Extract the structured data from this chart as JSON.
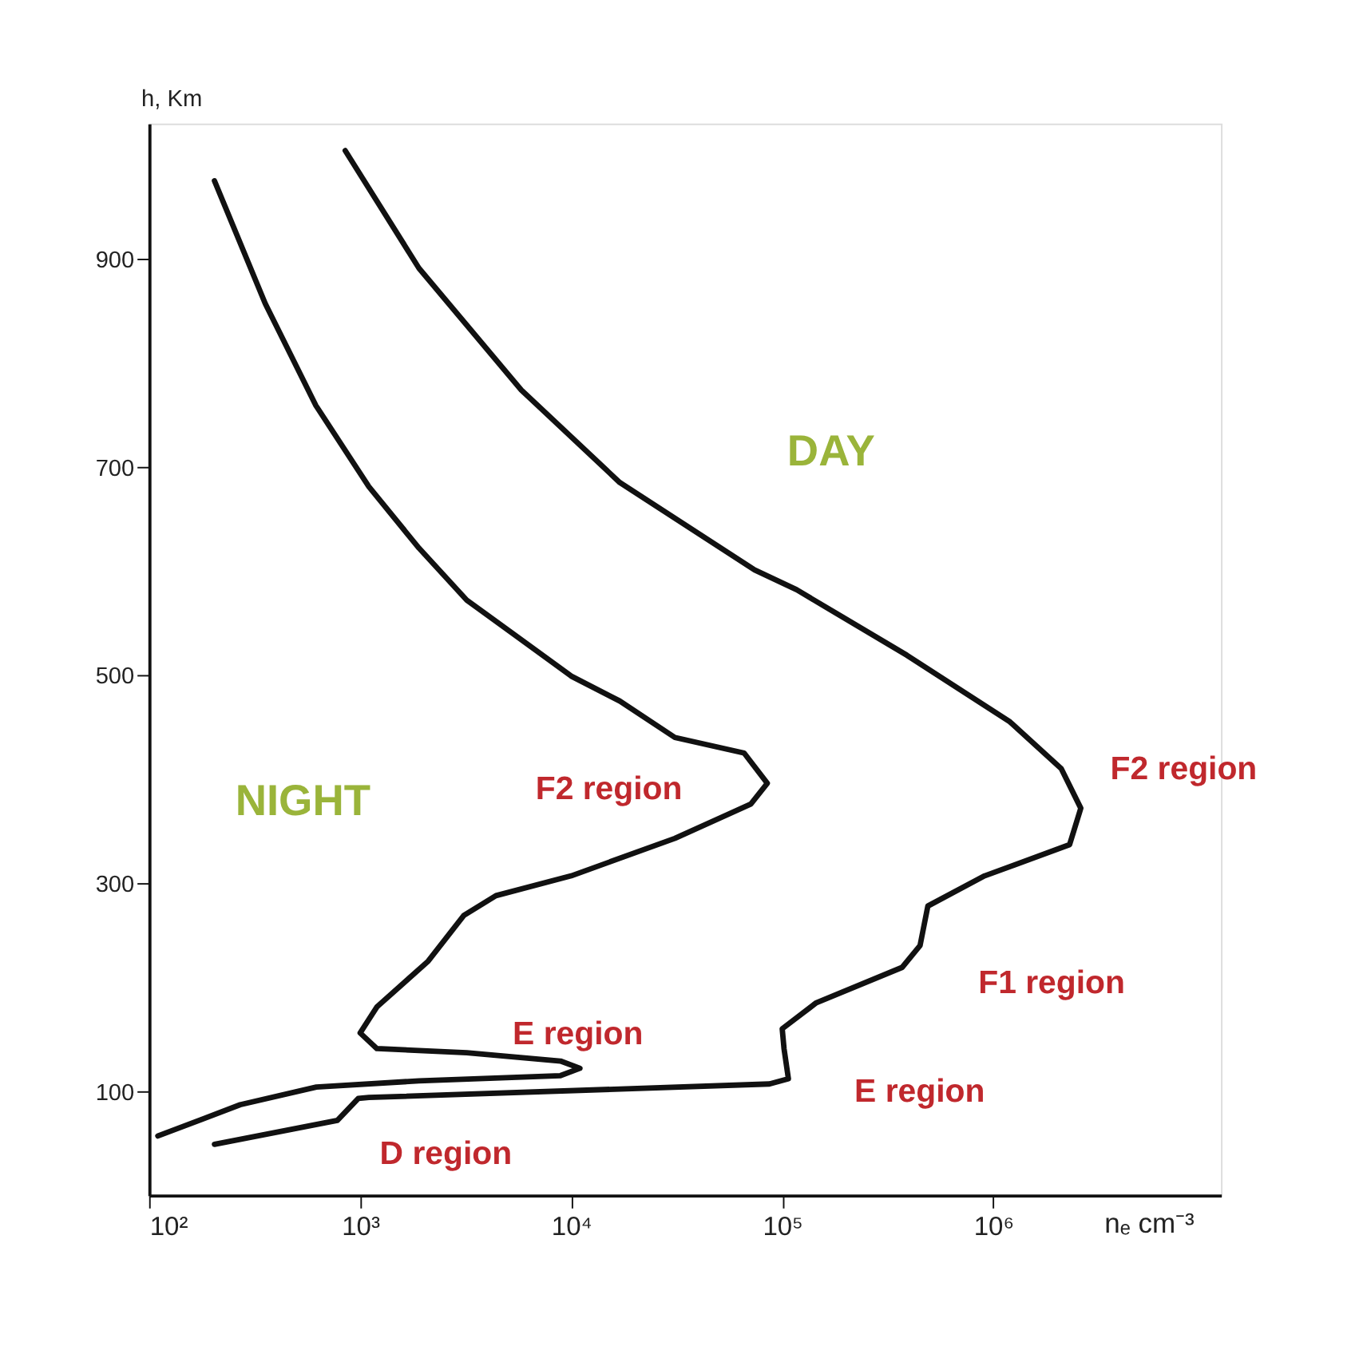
{
  "chart_data": {
    "type": "line",
    "xlabel": "nₑ cm⁻³",
    "ylabel": "h, Km",
    "log": "x",
    "xlim": [
      100,
      12000000
    ],
    "ylim": [
      0,
      1030
    ],
    "xticks": [
      {
        "value": 100,
        "label": "10²"
      },
      {
        "value": 1000,
        "label": "10³"
      },
      {
        "value": 10000,
        "label": "10⁴"
      },
      {
        "value": 100000,
        "label": "10⁵"
      },
      {
        "value": 1000000,
        "label": "10⁶"
      }
    ],
    "yticks": [
      100,
      300,
      500,
      700,
      900
    ],
    "grid": false,
    "marker": "none",
    "line_style": "solid",
    "series": [
      {
        "name": "NIGHT",
        "color": "#111111",
        "x": [
          204,
          355,
          617,
          1100,
          1900,
          3200,
          5800,
          10000,
          17000,
          31000,
          66000,
          85000,
          71000,
          31000,
          10000,
          4400,
          3100,
          2100,
          1200,
          1000,
          1200,
          3200,
          8900,
          11000,
          8900,
          1900,
          620,
          270,
          110
        ],
        "values": [
          975,
          857,
          759,
          681,
          622,
          572,
          534,
          499,
          475,
          440,
          425,
          396,
          376,
          343,
          307,
          288,
          269,
          225,
          181,
          156,
          141,
          137,
          129,
          122,
          115,
          110,
          104,
          87,
          57
        ]
      },
      {
        "name": "DAY",
        "color": "#111111",
        "x": [
          850,
          1900,
          5800,
          17000,
          74000,
          117000,
          390000,
          1200000,
          2100000,
          2600000,
          2300000,
          910000,
          490000,
          450000,
          370000,
          145000,
          100000,
          102000,
          107000,
          87000,
          1100,
          980,
          780,
          204
        ],
        "values": [
          1004,
          891,
          774,
          685,
          601,
          582,
          519,
          455,
          410,
          372,
          337,
          307,
          278,
          240,
          219,
          185,
          160,
          141,
          112,
          107,
          94,
          93,
          72,
          49
        ]
      }
    ],
    "annotations": [
      "F2 region",
      "E region",
      "D region",
      "F2 region",
      "F1 region",
      "E region"
    ]
  }
}
